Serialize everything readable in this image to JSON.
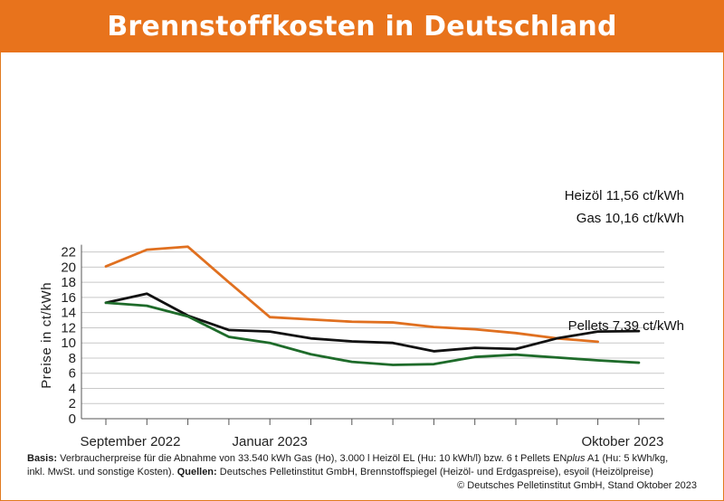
{
  "title": "Brennstoffkosten in Deutschland",
  "colors": {
    "header_bg": "#e8731c",
    "gas": "#e07020",
    "heizoel": "#111111",
    "pellets": "#1e6b2a",
    "grid": "#c8c8c8"
  },
  "chart_data": {
    "type": "line",
    "ylabel": "Preise in ct/kWh",
    "xlabel": "",
    "ylim": [
      0,
      22
    ],
    "yticks": [
      0,
      2,
      4,
      6,
      8,
      10,
      12,
      14,
      16,
      18,
      20,
      22
    ],
    "x_tick_labels": [
      "September 2022",
      "Januar 2023",
      "Oktober 2023"
    ],
    "months": [
      "2022-09",
      "2022-10",
      "2022-11",
      "2022-12",
      "2023-01",
      "2023-02",
      "2023-03",
      "2023-04",
      "2023-05",
      "2023-06",
      "2023-07",
      "2023-08",
      "2023-09",
      "2023-10"
    ],
    "series": [
      {
        "name": "Gas",
        "label": "Gas 10,16 ct/kWh",
        "color": "#e07020",
        "values": [
          20.1,
          22.3,
          22.7,
          18.0,
          13.4,
          13.1,
          12.8,
          12.7,
          12.1,
          11.8,
          11.3,
          10.6,
          10.16,
          null
        ]
      },
      {
        "name": "Heizöl",
        "label": "Heizöl 11,56 ct/kWh",
        "color": "#111111",
        "values": [
          15.3,
          16.5,
          13.6,
          11.7,
          11.5,
          10.6,
          10.2,
          10.0,
          8.9,
          9.35,
          9.2,
          10.6,
          11.5,
          11.56
        ]
      },
      {
        "name": "Pellets",
        "label": "Pellets 7,39 ct/kWh",
        "color": "#1e6b2a",
        "values": [
          15.3,
          14.9,
          13.5,
          10.8,
          10.0,
          8.5,
          7.5,
          7.1,
          7.2,
          8.15,
          8.45,
          null,
          7.7,
          7.39
        ]
      }
    ]
  },
  "footnote": {
    "basis_label": "Basis:",
    "basis_text": " Verbraucherpreise für die Abnahme von 33.540 kWh Gas (Ho), 3.000 l Heizöl EL (Hu: 10 kWh/l) bzw. 6 t Pellets EN",
    "basis_italic": "plus",
    "basis_text2": " A1 (Hu: 5 kWh/kg,",
    "line2_text": "inkl. MwSt. und sonstige Kosten). ",
    "sources_label": "Quellen:",
    "sources_text": " Deutsches Pelletinstitut GmbH, Brennstoffspiegel (Heizöl- und Erdgaspreise), esyoil (Heizölpreise)",
    "copyright": "© Deutsches Pelletinstitut GmbH, Stand Oktober 2023"
  }
}
